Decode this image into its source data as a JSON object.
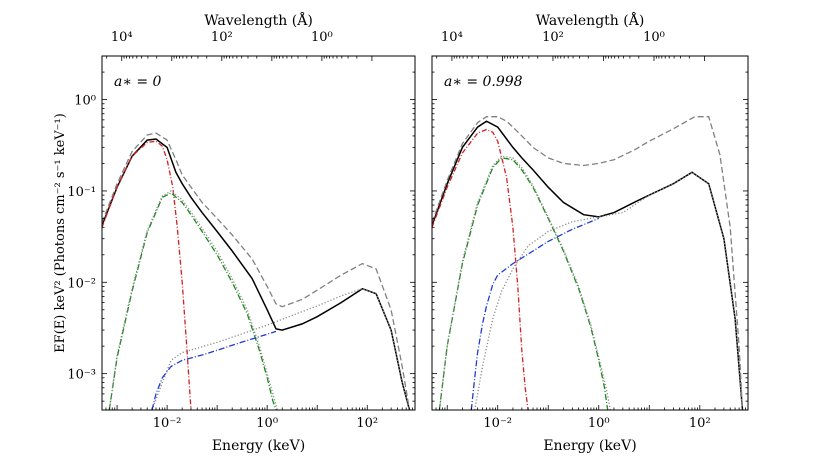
{
  "chart_data": [
    {
      "type": "line",
      "log_x": true,
      "log_y": true,
      "xlabel": "Energy   (keV)",
      "ylabel": "EF(E)   keV² (Photons cm⁻² s⁻¹ keV⁻¹)",
      "top_axis_label": "Wavelength   (Å)",
      "annotation": "a∗ = 0",
      "xlim": [
        0.0005,
        900
      ],
      "ylim": [
        0.0004,
        3
      ],
      "x_ticks": [
        {
          "value": 0.01,
          "label": "10⁻²"
        },
        {
          "value": 1,
          "label": "10⁰"
        },
        {
          "value": 100,
          "label": "10²"
        }
      ],
      "y_ticks": [
        {
          "value": 0.001,
          "label": "10⁻³"
        },
        {
          "value": 0.01,
          "label": "10⁻²"
        },
        {
          "value": 0.1,
          "label": "10⁻¹"
        },
        {
          "value": 1,
          "label": "10⁰"
        }
      ],
      "top_ticks": [
        {
          "value": 10000,
          "label": "10⁴"
        },
        {
          "value": 100,
          "label": "10²"
        },
        {
          "value": 1,
          "label": "10⁰"
        }
      ],
      "series": [
        {
          "style": "total",
          "color": "#000000",
          "dash": "",
          "x": [
            0.0005,
            0.001,
            0.002,
            0.004,
            0.006,
            0.01,
            0.015,
            0.02,
            0.03,
            0.05,
            0.1,
            0.2,
            0.5,
            1,
            1.5,
            2,
            5,
            10,
            30,
            80,
            150,
            300,
            500,
            700
          ],
          "y": [
            0.042,
            0.11,
            0.24,
            0.36,
            0.37,
            0.3,
            0.16,
            0.12,
            0.085,
            0.058,
            0.036,
            0.022,
            0.011,
            0.005,
            0.0031,
            0.003,
            0.0035,
            0.0042,
            0.006,
            0.0085,
            0.0075,
            0.003,
            0.0008,
            0.0004
          ]
        },
        {
          "style": "upper",
          "color": "#808080",
          "dash": "6,3",
          "x": [
            0.0005,
            0.001,
            0.002,
            0.004,
            0.006,
            0.01,
            0.015,
            0.02,
            0.03,
            0.05,
            0.1,
            0.2,
            0.5,
            1,
            1.5,
            2,
            5,
            10,
            30,
            80,
            150,
            300,
            500,
            700
          ],
          "y": [
            0.045,
            0.12,
            0.27,
            0.41,
            0.43,
            0.36,
            0.22,
            0.15,
            0.11,
            0.075,
            0.05,
            0.033,
            0.018,
            0.009,
            0.0058,
            0.0054,
            0.0065,
            0.0082,
            0.012,
            0.016,
            0.014,
            0.005,
            0.0012,
            0.0004
          ]
        },
        {
          "style": "disk-cold",
          "color": "#d62020",
          "dash": "5,2,1,2",
          "x": [
            0.0005,
            0.001,
            0.002,
            0.004,
            0.006,
            0.008,
            0.01,
            0.013,
            0.016,
            0.02,
            0.025,
            0.028,
            0.03
          ],
          "y": [
            0.04,
            0.11,
            0.24,
            0.34,
            0.35,
            0.31,
            0.22,
            0.11,
            0.04,
            0.01,
            0.0018,
            0.0007,
            0.0004
          ]
        },
        {
          "style": "disk-warm",
          "color": "#1a8a1a",
          "dash": "6,2,1,2",
          "x": [
            0.0007,
            0.001,
            0.002,
            0.004,
            0.008,
            0.012,
            0.02,
            0.03,
            0.05,
            0.1,
            0.2,
            0.4,
            0.7,
            1,
            1.3,
            1.5
          ],
          "y": [
            0.0004,
            0.0015,
            0.008,
            0.035,
            0.085,
            0.095,
            0.075,
            0.055,
            0.036,
            0.02,
            0.01,
            0.0045,
            0.0018,
            0.0009,
            0.0005,
            0.0004
          ]
        },
        {
          "style": "dotted",
          "color": "#888888",
          "dash": "1.2,2",
          "x": [
            0.0007,
            0.001,
            0.002,
            0.004,
            0.008,
            0.012,
            0.02,
            0.03,
            0.05,
            0.1,
            0.2,
            0.4,
            0.7,
            1,
            1.3,
            1.6
          ],
          "y": [
            0.0004,
            0.0016,
            0.0085,
            0.037,
            0.088,
            0.1,
            0.08,
            0.059,
            0.039,
            0.022,
            0.011,
            0.005,
            0.002,
            0.001,
            0.0006,
            0.0004
          ]
        },
        {
          "style": "comptonized",
          "color": "#888888",
          "dash": "1.2,2",
          "x": [
            0.005,
            0.008,
            0.012,
            0.02,
            0.04,
            0.1,
            0.3,
            1,
            3,
            10,
            30,
            80,
            150,
            300,
            500,
            700
          ],
          "y": [
            0.0004,
            0.0008,
            0.0014,
            0.0017,
            0.0019,
            0.0022,
            0.0027,
            0.0034,
            0.0043,
            0.0055,
            0.0071,
            0.0085,
            0.0075,
            0.003,
            0.0008,
            0.0004
          ]
        },
        {
          "style": "powerlaw",
          "color": "#1f3ad6",
          "dash": "6,2,1,2",
          "x": [
            0.005,
            0.006,
            0.008,
            0.012,
            0.02,
            0.05,
            0.1,
            0.3,
            1,
            1.5
          ],
          "y": [
            0.0004,
            0.0006,
            0.0009,
            0.0012,
            0.0014,
            0.0016,
            0.0018,
            0.0022,
            0.0027,
            0.0029
          ]
        }
      ]
    },
    {
      "type": "line",
      "log_x": true,
      "log_y": true,
      "xlabel": "Energy   (keV)",
      "top_axis_label": "Wavelength   (Å)",
      "annotation": "a∗ = 0.998",
      "xlim": [
        0.0005,
        900
      ],
      "ylim": [
        0.0004,
        3
      ],
      "x_ticks": [
        {
          "value": 0.01,
          "label": "10⁻²"
        },
        {
          "value": 1,
          "label": "10⁰"
        },
        {
          "value": 100,
          "label": "10²"
        }
      ],
      "y_ticks": [
        {
          "value": 0.001,
          "label": ""
        },
        {
          "value": 0.01,
          "label": ""
        },
        {
          "value": 0.1,
          "label": ""
        },
        {
          "value": 1,
          "label": ""
        }
      ],
      "top_ticks": [
        {
          "value": 10000,
          "label": "10⁴"
        },
        {
          "value": 100,
          "label": "10²"
        },
        {
          "value": 1,
          "label": "10⁰"
        }
      ],
      "series": [
        {
          "style": "total",
          "color": "#000000",
          "dash": "",
          "x": [
            0.0005,
            0.001,
            0.002,
            0.004,
            0.006,
            0.01,
            0.015,
            0.02,
            0.03,
            0.05,
            0.1,
            0.2,
            0.5,
            1,
            2,
            5,
            10,
            30,
            70,
            150,
            300,
            500,
            700
          ],
          "y": [
            0.042,
            0.12,
            0.3,
            0.5,
            0.58,
            0.5,
            0.37,
            0.3,
            0.23,
            0.17,
            0.11,
            0.075,
            0.055,
            0.052,
            0.058,
            0.075,
            0.09,
            0.12,
            0.16,
            0.12,
            0.03,
            0.004,
            0.0004
          ]
        },
        {
          "style": "upper",
          "color": "#808080",
          "dash": "6,3",
          "x": [
            0.0005,
            0.001,
            0.002,
            0.004,
            0.006,
            0.01,
            0.015,
            0.02,
            0.03,
            0.05,
            0.1,
            0.2,
            0.5,
            1,
            2,
            5,
            10,
            30,
            80,
            150,
            250,
            400,
            600,
            700
          ],
          "y": [
            0.045,
            0.13,
            0.33,
            0.56,
            0.65,
            0.65,
            0.58,
            0.5,
            0.4,
            0.3,
            0.23,
            0.2,
            0.19,
            0.2,
            0.22,
            0.28,
            0.35,
            0.48,
            0.65,
            0.65,
            0.25,
            0.04,
            0.002,
            0.0004
          ]
        },
        {
          "style": "disk-cold",
          "color": "#d62020",
          "dash": "5,2,1,2",
          "x": [
            0.0005,
            0.001,
            0.002,
            0.004,
            0.006,
            0.008,
            0.01,
            0.015,
            0.02,
            0.025,
            0.03,
            0.035,
            0.04
          ],
          "y": [
            0.04,
            0.11,
            0.26,
            0.43,
            0.47,
            0.44,
            0.35,
            0.14,
            0.04,
            0.009,
            0.0018,
            0.0007,
            0.0004
          ]
        },
        {
          "style": "disk-warm",
          "color": "#1a8a1a",
          "dash": "6,2,1,2",
          "x": [
            0.0007,
            0.001,
            0.002,
            0.004,
            0.008,
            0.012,
            0.02,
            0.03,
            0.05,
            0.1,
            0.2,
            0.4,
            0.7,
            1,
            1.3,
            1.5
          ],
          "y": [
            0.0004,
            0.002,
            0.016,
            0.07,
            0.18,
            0.23,
            0.22,
            0.17,
            0.11,
            0.05,
            0.022,
            0.0085,
            0.0032,
            0.0014,
            0.0007,
            0.0004
          ]
        },
        {
          "style": "dotted",
          "color": "#888888",
          "dash": "1.2,2",
          "x": [
            0.0007,
            0.001,
            0.002,
            0.004,
            0.008,
            0.012,
            0.02,
            0.03,
            0.05,
            0.1,
            0.2,
            0.4,
            0.7,
            1,
            1.4,
            1.7
          ],
          "y": [
            0.0004,
            0.002,
            0.017,
            0.075,
            0.19,
            0.24,
            0.23,
            0.18,
            0.115,
            0.052,
            0.023,
            0.009,
            0.0034,
            0.0015,
            0.0007,
            0.0004
          ]
        },
        {
          "style": "comptonized",
          "color": "#888888",
          "dash": "1.2,2",
          "x": [
            0.0035,
            0.005,
            0.008,
            0.012,
            0.02,
            0.04,
            0.1,
            0.3,
            1,
            3,
            10,
            30,
            70,
            150,
            300,
            500,
            700
          ],
          "y": [
            0.0004,
            0.0012,
            0.004,
            0.008,
            0.014,
            0.025,
            0.036,
            0.046,
            0.052,
            0.058,
            0.09,
            0.12,
            0.16,
            0.12,
            0.03,
            0.004,
            0.0004
          ]
        },
        {
          "style": "powerlaw",
          "color": "#1f3ad6",
          "dash": "6,2,1,2",
          "x": [
            0.003,
            0.0035,
            0.004,
            0.005,
            0.006,
            0.008,
            0.01,
            0.02,
            0.05,
            0.1,
            0.3,
            1
          ],
          "y": [
            0.0004,
            0.0009,
            0.0017,
            0.0035,
            0.0055,
            0.0095,
            0.012,
            0.016,
            0.022,
            0.028,
            0.038,
            0.05
          ]
        }
      ]
    }
  ]
}
